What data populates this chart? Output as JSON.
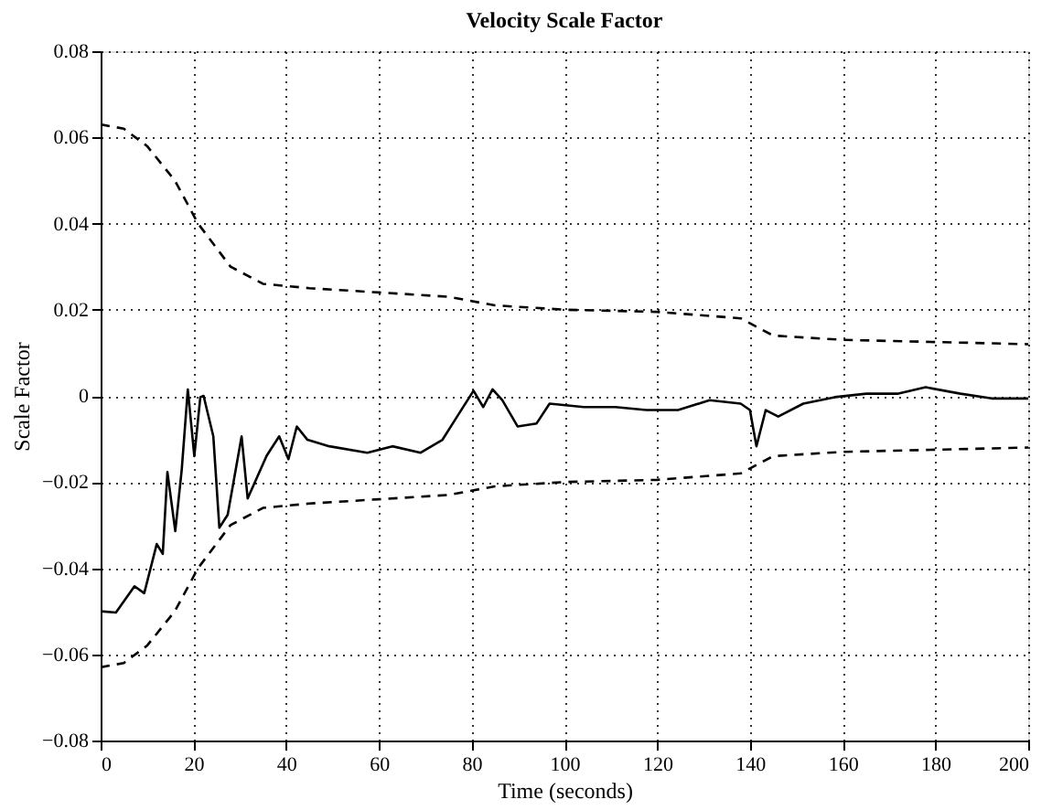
{
  "chart_data": {
    "type": "line",
    "title": "Velocity Scale Factor",
    "xlabel": "Time (seconds)",
    "ylabel": "Scale Factor",
    "xlim": [
      0,
      200
    ],
    "xticks": [
      0,
      20,
      40,
      60,
      80,
      100,
      120,
      140,
      160,
      180,
      200
    ],
    "ylim": [
      -0.08,
      0.08
    ],
    "yticks": [
      -0.08,
      -0.06,
      -0.04,
      -0.02,
      {
        "value": 0,
        "label": "0"
      },
      0.02,
      0.04,
      0.06,
      0.08
    ],
    "grid": true,
    "marker": "none",
    "series": [
      {
        "color": "#000000",
        "line_style": "solid",
        "x": [
          0,
          3.3,
          7.3,
          9.4,
          12.1,
          13.4,
          14.4,
          16.1,
          17.5,
          18.8,
          20.2,
          21.5,
          22.2,
          24.3,
          25.6,
          27.4,
          30.4,
          31.7,
          35.8,
          38.5,
          40.5,
          42.3,
          44.6,
          49.3,
          57.5,
          62.9,
          69,
          73.7,
          76.4,
          80.4,
          82.5,
          84.5,
          86.6,
          89.9,
          94,
          96.8,
          104.2,
          111,
          117.7,
          124.5,
          131.3,
          138,
          140,
          141.4,
          143.4,
          146.1,
          151.5,
          158.3,
          165.1,
          171.8,
          177.9,
          185.4,
          192.1,
          200
        ],
        "values": [
          -0.05,
          -0.0503,
          -0.0442,
          -0.0458,
          -0.0344,
          -0.0367,
          -0.0177,
          -0.0314,
          -0.017,
          0.0015,
          -0.014,
          -0.0003,
          0,
          -0.0094,
          -0.0306,
          -0.0276,
          -0.0094,
          -0.0238,
          -0.0139,
          -0.0094,
          -0.0147,
          -0.0071,
          -0.0102,
          -0.0117,
          -0.0132,
          -0.0117,
          -0.0132,
          -0.0102,
          -0.0056,
          0.0012,
          -0.0026,
          0.0015,
          -0.001,
          -0.0071,
          -0.0064,
          -0.0018,
          -0.0026,
          -0.0026,
          -0.0033,
          -0.0033,
          -0.001,
          -0.0018,
          -0.0033,
          -0.0117,
          -0.0033,
          -0.0048,
          -0.0018,
          -0.0003,
          0.0005,
          0.0005,
          0.002,
          0.0005,
          -0.0006,
          -0.0006
        ]
      },
      {
        "color": "#000000",
        "line_style": "dashed",
        "x": [
          0,
          5,
          10,
          16,
          21,
          28,
          35,
          45,
          60,
          75,
          85,
          100,
          120,
          138,
          145,
          160,
          200
        ],
        "values": [
          0.063,
          0.062,
          0.058,
          0.05,
          0.04,
          0.03,
          0.026,
          0.025,
          0.024,
          0.023,
          0.021,
          0.02,
          0.0195,
          0.018,
          0.014,
          0.013,
          0.012
        ]
      },
      {
        "color": "#000000",
        "line_style": "dashed",
        "x": [
          0,
          5,
          10,
          16,
          21,
          28,
          35,
          45,
          60,
          75,
          85,
          100,
          120,
          138,
          145,
          160,
          200
        ],
        "values": [
          -0.063,
          -0.062,
          -0.058,
          -0.05,
          -0.04,
          -0.03,
          -0.026,
          -0.025,
          -0.024,
          -0.023,
          -0.021,
          -0.02,
          -0.0195,
          -0.018,
          -0.014,
          -0.013,
          -0.012
        ]
      }
    ]
  }
}
